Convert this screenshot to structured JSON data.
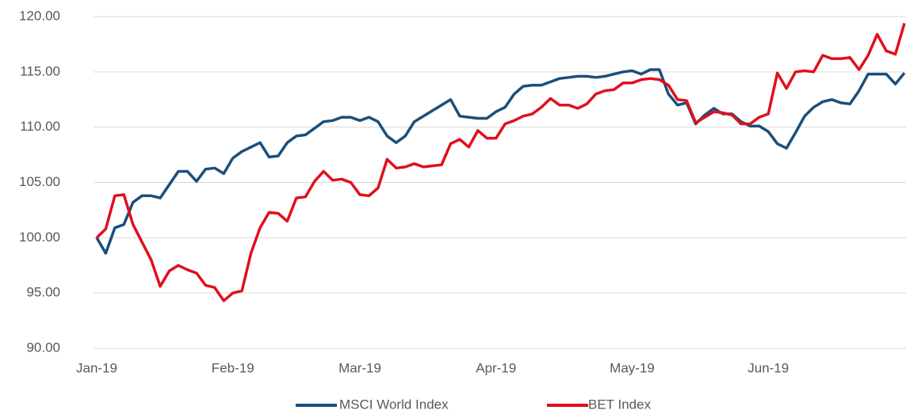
{
  "chart_data": {
    "type": "line",
    "categories": [
      "Jan-19",
      null,
      null,
      null,
      null,
      null,
      null,
      null,
      null,
      null,
      null,
      null,
      null,
      null,
      null,
      "Feb-19",
      null,
      null,
      null,
      null,
      null,
      null,
      null,
      null,
      null,
      null,
      null,
      null,
      null,
      "Mar-19",
      null,
      null,
      null,
      null,
      null,
      null,
      null,
      null,
      null,
      null,
      null,
      null,
      null,
      null,
      "Apr-19",
      null,
      null,
      null,
      null,
      null,
      null,
      null,
      null,
      null,
      null,
      null,
      null,
      null,
      null,
      "May-19",
      null,
      null,
      null,
      null,
      null,
      null,
      null,
      null,
      null,
      null,
      null,
      null,
      null,
      null,
      "Jun-19",
      null,
      null,
      null,
      null,
      null,
      null,
      null,
      null,
      null,
      null,
      null,
      null,
      null,
      null,
      null
    ],
    "series": [
      {
        "name": "MSCI World Index",
        "color": "#1b4f7c",
        "values": [
          100,
          98.6,
          100.9,
          101.2,
          103.2,
          103.8,
          103.8,
          103.6,
          104.8,
          106,
          106,
          105.1,
          106.2,
          106.3,
          105.8,
          107.2,
          107.8,
          108.2,
          108.6,
          107.3,
          107.4,
          108.6,
          109.2,
          109.3,
          109.9,
          110.5,
          110.6,
          110.9,
          110.9,
          110.6,
          110.9,
          110.5,
          109.2,
          108.6,
          109.2,
          110.5,
          111,
          111.5,
          112,
          112.5,
          111,
          110.9,
          110.8,
          110.8,
          111.4,
          111.8,
          113,
          113.7,
          113.8,
          113.8,
          114.1,
          114.4,
          114.5,
          114.6,
          114.6,
          114.5,
          114.6,
          114.8,
          115,
          115.1,
          114.8,
          115.2,
          115.2,
          113,
          112,
          112.2,
          110.3,
          111.1,
          111.7,
          111.2,
          111.2,
          110.5,
          110.1,
          110.1,
          109.6,
          108.5,
          108.1,
          109.5,
          111,
          111.8,
          112.3,
          112.5,
          112.2,
          112.1,
          113.3,
          114.8,
          114.8,
          114.8,
          113.9,
          114.9
        ]
      },
      {
        "name": "BET Index",
        "color": "#e0101c",
        "values": [
          100,
          100.8,
          103.8,
          103.9,
          101.2,
          99.6,
          98,
          95.6,
          97,
          97.5,
          97.1,
          96.8,
          95.7,
          95.5,
          94.3,
          95,
          95.2,
          98.6,
          100.9,
          102.3,
          102.2,
          101.5,
          103.6,
          103.7,
          105.1,
          106,
          105.2,
          105.3,
          105,
          103.9,
          103.8,
          104.5,
          107.1,
          106.3,
          106.4,
          106.7,
          106.4,
          106.5,
          106.6,
          108.5,
          108.9,
          108.2,
          109.7,
          109,
          109,
          110.3,
          110.6,
          111,
          111.2,
          111.8,
          112.6,
          112,
          112,
          111.7,
          112.1,
          113,
          113.3,
          113.4,
          114,
          114,
          114.3,
          114.4,
          114.3,
          113.8,
          112.5,
          112.4,
          110.4,
          110.9,
          111.4,
          111.3,
          111.1,
          110.3,
          110.3,
          110.9,
          111.2,
          114.9,
          113.5,
          115,
          115.1,
          115,
          116.5,
          116.2,
          116.2,
          116.3,
          115.2,
          116.5,
          118.4,
          116.9,
          116.6,
          119.4
        ]
      }
    ],
    "ylim": [
      90,
      120
    ],
    "yticks": [
      {
        "value": 90,
        "label": "90.00"
      },
      {
        "value": 95,
        "label": "95.00"
      },
      {
        "value": 100,
        "label": "100.00"
      },
      {
        "value": 105,
        "label": "105.00"
      },
      {
        "value": 110,
        "label": "110.00"
      },
      {
        "value": 115,
        "label": "115.00"
      },
      {
        "value": 120,
        "label": "120.00"
      }
    ],
    "grid": true,
    "legend": "bottom"
  }
}
